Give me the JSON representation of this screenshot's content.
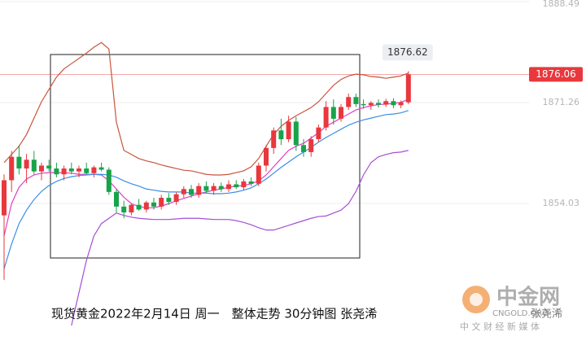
{
  "chart_data": {
    "type": "candlestick",
    "categories": [
      null,
      null,
      null,
      null,
      null,
      null,
      null,
      null,
      null,
      null,
      null,
      null,
      null,
      null,
      null,
      null,
      null,
      null,
      null,
      null,
      null,
      null,
      null,
      null,
      null,
      null,
      null,
      null,
      null,
      null,
      null,
      null,
      null,
      null,
      null,
      null,
      null,
      null,
      null,
      null,
      null,
      null,
      null,
      null,
      null,
      null,
      null,
      null,
      null,
      null,
      null,
      null,
      null,
      null,
      null
    ],
    "open": [
      1852,
      1858,
      1862,
      1860,
      1861.5,
      1859.5,
      1860.5,
      1860,
      1859,
      1860,
      1859.5,
      1860,
      1859.2,
      1860.2,
      1859.8,
      1856,
      1853.5,
      1852.5,
      1853.8,
      1853,
      1854.2,
      1853.5,
      1855,
      1854.3,
      1855.6,
      1856.5,
      1855.5,
      1857,
      1856.2,
      1857,
      1856.5,
      1857.3,
      1856.8,
      1857.8,
      1857.4,
      1860.5,
      1863.5,
      1866.5,
      1865,
      1868,
      1864,
      1862.8,
      1865,
      1867,
      1870.5,
      1868.5,
      1870.5,
      1872.2,
      1871,
      1870.8,
      1871.2,
      1870.9,
      1871.5,
      1870.8,
      1871.3
    ],
    "high": [
      1859,
      1863,
      1864,
      1862.5,
      1863,
      1861,
      1861.5,
      1861,
      1860.5,
      1861,
      1860.5,
      1861,
      1860.5,
      1861,
      1860.2,
      1856.5,
      1854.5,
      1854,
      1854.8,
      1854.5,
      1855,
      1855.5,
      1855.8,
      1856,
      1857,
      1857.2,
      1857.5,
      1857.8,
      1857.5,
      1857.6,
      1858,
      1858,
      1858.2,
      1858.5,
      1861,
      1864,
      1867,
      1868.5,
      1869,
      1868.8,
      1865,
      1865.5,
      1867.5,
      1871.5,
      1871.8,
      1871,
      1872.8,
      1872.8,
      1871.8,
      1871.5,
      1871.8,
      1871.9,
      1872,
      1871.6,
      1876.62
    ],
    "low": [
      1841,
      1856,
      1859,
      1857.5,
      1859,
      1858,
      1859.5,
      1858.5,
      1858,
      1859,
      1858.5,
      1859,
      1858.5,
      1859.5,
      1855.5,
      1852.5,
      1851.5,
      1852,
      1852.8,
      1852.5,
      1853,
      1853,
      1853.8,
      1853.8,
      1855,
      1855,
      1855,
      1855.8,
      1855.5,
      1856,
      1856,
      1856.5,
      1856.3,
      1857,
      1857,
      1859.5,
      1862.5,
      1864,
      1864.5,
      1863,
      1862,
      1862,
      1864.5,
      1866.5,
      1867.5,
      1868,
      1870,
      1870.5,
      1870.2,
      1870,
      1870.4,
      1870.5,
      1870.3,
      1870.3,
      1871
    ],
    "close": [
      1858,
      1862,
      1860,
      1861.5,
      1859.5,
      1860.5,
      1860,
      1859,
      1860,
      1859.5,
      1860,
      1859.2,
      1860.2,
      1859.8,
      1856,
      1853.5,
      1852.5,
      1853.8,
      1853,
      1854.2,
      1853.5,
      1855,
      1854.3,
      1855.6,
      1856.5,
      1855.5,
      1857,
      1856.2,
      1857,
      1856.5,
      1857.3,
      1856.8,
      1857.8,
      1857.4,
      1860.5,
      1863.5,
      1866.5,
      1865,
      1868,
      1864,
      1862.8,
      1865,
      1867,
      1870.5,
      1868.5,
      1870.5,
      1872.2,
      1871,
      1870.8,
      1871.2,
      1870.9,
      1871.5,
      1870.8,
      1871.3,
      1876.06
    ],
    "up_color": "#e8383d",
    "down_color": "#17a34a",
    "series": [
      {
        "color": "#c8553d",
        "values": [
          1861.0,
          1862.4,
          1863.8,
          1865.8,
          1868.6,
          1871.4,
          1873.5,
          1875.6,
          1877.0,
          1877.9,
          1878.8,
          1879.7,
          1880.7,
          1881.5,
          1880.4,
          1867.9,
          1863.1,
          1862.4,
          1861.7,
          1861.3,
          1861.0,
          1860.6,
          1860.3,
          1860.0,
          1859.7,
          1859.6,
          1859.3,
          1859.0,
          1858.9,
          1858.9,
          1859.0,
          1859.3,
          1859.6,
          1860.3,
          1861.7,
          1863.8,
          1865.8,
          1867.2,
          1868.2,
          1869.0,
          1869.7,
          1870.4,
          1871.4,
          1872.8,
          1874.2,
          1875.2,
          1875.8,
          1876.1,
          1876.0,
          1875.7,
          1875.6,
          1875.4,
          1875.6,
          1875.8,
          1876.3
        ]
      },
      {
        "color": "#a64fd6",
        "values": [
          null,
          null,
          null,
          null,
          null,
          null,
          null,
          null,
          null,
          1833.2,
          1838.8,
          1844.3,
          1848.5,
          1850.6,
          1851.5,
          1852.4,
          1852.0,
          1851.7,
          1851.5,
          1851.4,
          1851.3,
          1851.3,
          1851.3,
          1851.4,
          1851.5,
          1851.5,
          1851.5,
          1851.4,
          1851.3,
          1851.3,
          1851.3,
          1851.1,
          1850.8,
          1850.4,
          1849.9,
          1849.5,
          1849.5,
          1849.9,
          1850.3,
          1850.7,
          1851.1,
          1851.5,
          1851.8,
          1851.9,
          1852.4,
          1852.9,
          1854.0,
          1856.1,
          1858.9,
          1861.0,
          1862.0,
          1862.4,
          1862.7,
          1862.8,
          1863.1
        ]
      },
      {
        "color": "#e23fc4",
        "values": [
          1848.5,
          1854.0,
          1856.8,
          1858.2,
          1858.9,
          1859.2,
          1859.3,
          1859.3,
          1859.3,
          1859.2,
          1859.0,
          1859.0,
          1859.0,
          1858.9,
          1857.9,
          1856.5,
          1855.1,
          1854.0,
          1853.5,
          1853.3,
          1853.3,
          1853.6,
          1854.0,
          1854.5,
          1854.9,
          1855.3,
          1855.7,
          1856.0,
          1856.3,
          1856.5,
          1856.8,
          1857.0,
          1857.1,
          1857.4,
          1857.9,
          1858.9,
          1860.3,
          1861.7,
          1863.1,
          1863.8,
          1864.3,
          1865.2,
          1866.1,
          1867.2,
          1867.9,
          1868.6,
          1869.3,
          1870.0,
          1870.4,
          1870.7,
          1870.9,
          1871.0,
          1871.1,
          1871.3,
          1871.8
        ]
      },
      {
        "color": "#3a8ee6",
        "values": [
          1842.9,
          1847.1,
          1850.6,
          1852.9,
          1854.7,
          1856.1,
          1857.1,
          1857.8,
          1858.3,
          1858.6,
          1858.8,
          1858.9,
          1859.0,
          1859.0,
          1858.9,
          1858.5,
          1857.9,
          1857.4,
          1857.0,
          1856.5,
          1856.3,
          1856.1,
          1856.0,
          1856.0,
          1856.0,
          1855.8,
          1855.8,
          1855.8,
          1855.7,
          1855.7,
          1855.8,
          1856.0,
          1856.3,
          1856.7,
          1857.4,
          1858.2,
          1859.2,
          1860.2,
          1861.1,
          1862.0,
          1862.8,
          1863.6,
          1864.5,
          1865.3,
          1866.0,
          1866.7,
          1867.4,
          1867.9,
          1868.3,
          1868.6,
          1868.9,
          1869.2,
          1869.3,
          1869.5,
          1869.9
        ]
      }
    ],
    "ylim": [
      1830.56,
      1888.76
    ],
    "yticks": [
      1888.49,
      1871.26,
      1854.03
    ],
    "grid": true,
    "last_price": 1876.06,
    "high_annotation": 1876.62,
    "caption": "现货黄金2022年2月14日 周一　整体走势 30分钟图  张尧浠",
    "watermark": {
      "logo": "中金网",
      "site": "CNGOLD.ORG",
      "slogan": "中 文 财 经 新 媒 体",
      "author": "张尧浠"
    }
  }
}
